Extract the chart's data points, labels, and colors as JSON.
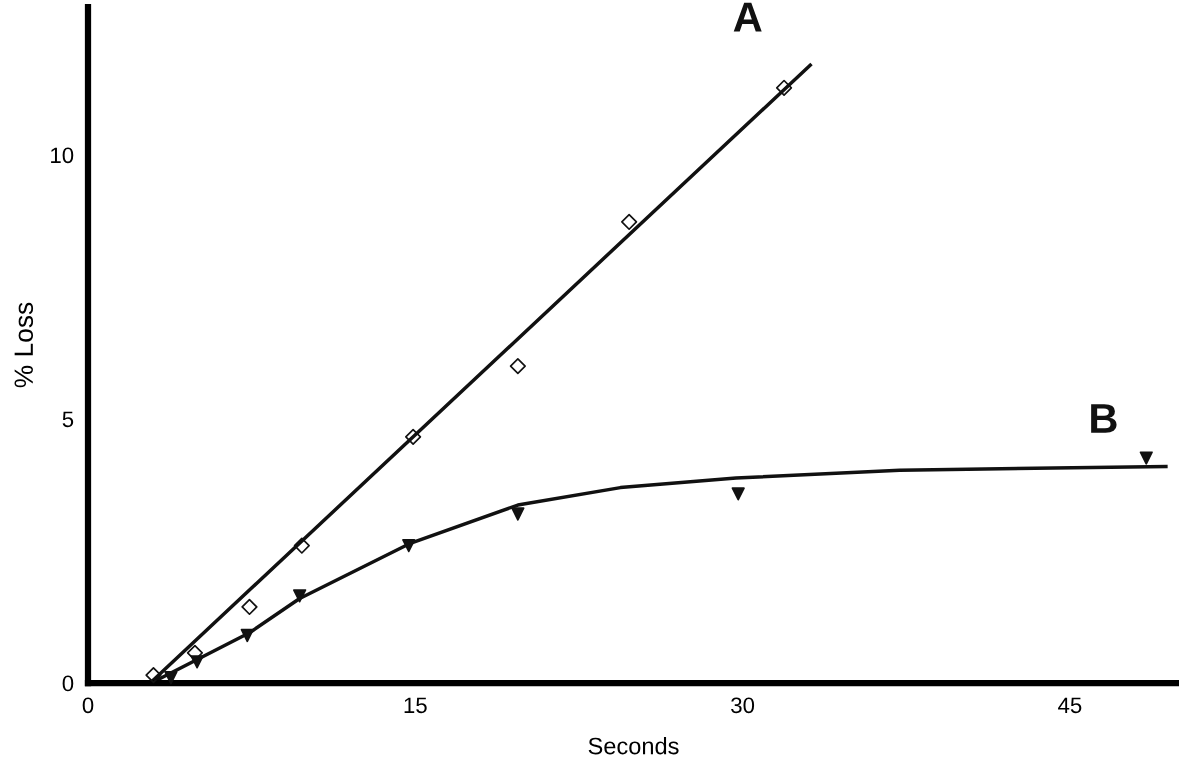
{
  "chart_data": {
    "type": "scatter",
    "xlabel": "Seconds",
    "ylabel": "% Loss",
    "xlim": [
      0,
      50
    ],
    "ylim": [
      0,
      12.8
    ],
    "xticks": [
      0,
      15,
      30,
      45
    ],
    "yticks": [
      0,
      5,
      10
    ],
    "grid": false,
    "legend": false,
    "series": [
      {
        "marker": "diamond",
        "color": "#111111",
        "x": [
          3.0,
          4.9,
          7.4,
          9.8,
          14.9,
          19.7,
          24.8,
          31.9
        ],
        "values": [
          0.15,
          0.57,
          1.44,
          2.6,
          4.66,
          6.0,
          8.73,
          11.27
        ]
      },
      {
        "type": "line",
        "name": "A",
        "marker": "none",
        "line_style": "solid",
        "color": "#111111",
        "x": [
          2.85,
          33.1
        ],
        "values": [
          0,
          11.7
        ]
      },
      {
        "marker": "triangle",
        "color": "#111111",
        "x": [
          3.8,
          5.0,
          7.3,
          9.7,
          14.7,
          19.7,
          29.8,
          48.5
        ],
        "values": [
          0.1,
          0.4,
          0.9,
          1.65,
          2.6,
          3.2,
          3.58,
          4.26
        ]
      },
      {
        "type": "line",
        "name": "B",
        "marker": "none",
        "line_style": "solid",
        "color": "#111111",
        "x": [
          2.9,
          7.4,
          9.7,
          14.8,
          19.7,
          24.4,
          29.7,
          37.2,
          49.4
        ],
        "values": [
          0,
          0.95,
          1.6,
          2.65,
          3.37,
          3.7,
          3.88,
          4.03,
          4.1
        ]
      }
    ]
  }
}
